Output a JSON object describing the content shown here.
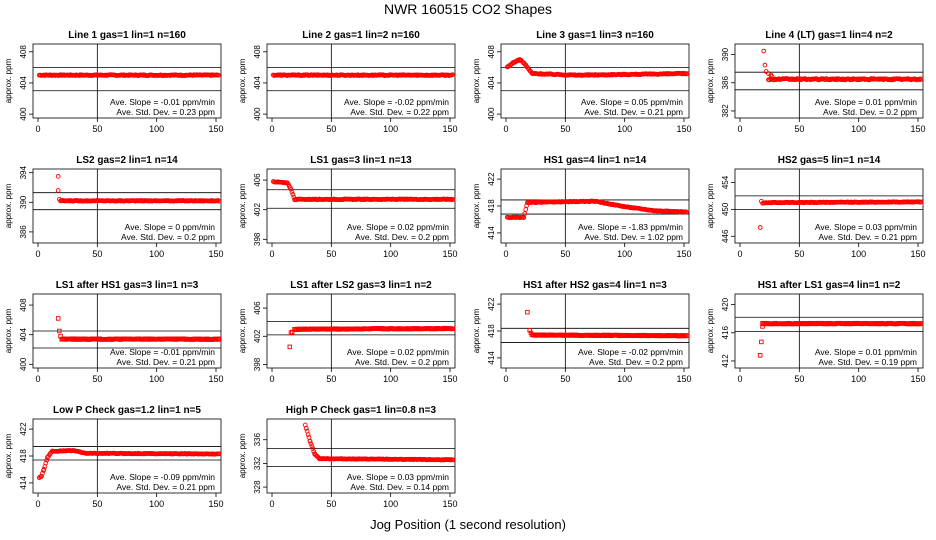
{
  "page": {
    "title": "NWR  160515  CO2 Shapes",
    "xlabel": "Jog Position (1 second resolution)"
  },
  "colors": {
    "points": "#ff0000",
    "axes": "#000000",
    "background": "#ffffff"
  },
  "chart_data": [
    {
      "type": "scatter",
      "title": "Line 1 gas=1 lin=1 n=160",
      "ylabel": "approx. ppm",
      "xlim": [
        0,
        150
      ],
      "xticks": [
        0,
        50,
        100,
        150
      ],
      "ylim": [
        399.5,
        409
      ],
      "yticks": [
        400,
        404,
        408
      ],
      "hlines": [
        403,
        406
      ],
      "vline": 50,
      "marker": "circle",
      "baseline": 405,
      "segments": [
        [
          1,
          153,
          405,
          405
        ]
      ],
      "noise": 0.06,
      "outliers": [],
      "slope_label": "Ave. Slope =  -0.01  ppm/min",
      "sd_label": "Ave. Std. Dev. =  0.23  ppm"
    },
    {
      "type": "scatter",
      "title": "Line 2 gas=1 lin=2 n=160",
      "ylabel": "approx. ppm",
      "xlim": [
        0,
        150
      ],
      "xticks": [
        0,
        50,
        100,
        150
      ],
      "ylim": [
        399.5,
        409
      ],
      "yticks": [
        400,
        404,
        408
      ],
      "hlines": [
        403,
        406
      ],
      "vline": 50,
      "marker": "circle",
      "baseline": 405,
      "segments": [
        [
          1,
          153,
          405,
          405
        ]
      ],
      "noise": 0.06,
      "outliers": [],
      "slope_label": "Ave. Slope =  -0.02  ppm/min",
      "sd_label": "Ave. Std. Dev. =  0.22  ppm"
    },
    {
      "type": "scatter",
      "title": "Line 3 gas=1 lin=3 n=160",
      "ylabel": "approx. ppm",
      "xlim": [
        0,
        150
      ],
      "xticks": [
        0,
        50,
        100,
        150
      ],
      "ylim": [
        399.5,
        409
      ],
      "yticks": [
        400,
        404,
        408
      ],
      "hlines": [
        403,
        406
      ],
      "vline": 50,
      "marker": "circle",
      "baseline": 405,
      "segments": [
        [
          1,
          6,
          406,
          406.6
        ],
        [
          6,
          12,
          406.6,
          407
        ],
        [
          12,
          16,
          407,
          406.4
        ],
        [
          16,
          22,
          406.4,
          405.2
        ],
        [
          22,
          60,
          405.2,
          405
        ],
        [
          60,
          153,
          405,
          405.2
        ]
      ],
      "noise": 0.06,
      "outliers": [],
      "slope_label": "Ave. Slope =  0.05  ppm/min",
      "sd_label": "Ave. Std. Dev. =  0.21  ppm"
    },
    {
      "type": "scatter",
      "title": "Line 4 (LT) gas=1 lin=4 n=2",
      "ylabel": "approx. ppm",
      "xlim": [
        0,
        150
      ],
      "xticks": [
        0,
        50,
        100,
        150
      ],
      "ylim": [
        381,
        391.5
      ],
      "yticks": [
        382,
        386,
        390
      ],
      "hlines": [
        385,
        387.5
      ],
      "vline": 50,
      "marker": "circle",
      "baseline": 386.5,
      "segments": [
        [
          24,
          153,
          386.5,
          386.5
        ]
      ],
      "noise": 0.1,
      "outliers": [
        [
          20,
          390.5
        ],
        [
          21,
          388.5
        ],
        [
          22,
          387.6
        ],
        [
          24,
          387.3
        ],
        [
          26,
          387.1
        ],
        [
          27,
          386.9
        ]
      ],
      "slope_label": "Ave. Slope =  0.01  ppm/min",
      "sd_label": "Ave. Std. Dev. =  0.2  ppm"
    },
    {
      "type": "scatter",
      "title": "LS2 gas=2 lin=1 n=14",
      "ylabel": "approx. ppm",
      "xlim": [
        0,
        150
      ],
      "xticks": [
        0,
        50,
        100,
        150
      ],
      "ylim": [
        384.5,
        394.5
      ],
      "yticks": [
        386,
        390,
        394
      ],
      "hlines": [
        389,
        391.3
      ],
      "vline": 50,
      "marker": "circle",
      "baseline": 390.2,
      "segments": [
        [
          19,
          153,
          390.2,
          390.2
        ]
      ],
      "noise": 0.05,
      "outliers": [
        [
          17,
          393.5
        ],
        [
          17,
          391.6
        ],
        [
          18,
          390.4
        ]
      ],
      "slope_label": "Ave. Slope =  0  ppm/min",
      "sd_label": "Ave. Std. Dev. =  0.2  ppm"
    },
    {
      "type": "scatter",
      "title": "LS1 gas=3 lin=1 n=13",
      "ylabel": "approx. ppm",
      "xlim": [
        0,
        150
      ],
      "xticks": [
        0,
        50,
        100,
        150
      ],
      "ylim": [
        397.5,
        407.5
      ],
      "yticks": [
        398,
        402,
        406
      ],
      "hlines": [
        402.2,
        404.7
      ],
      "vline": 50,
      "marker": "circle",
      "baseline": 403.4,
      "segments": [
        [
          1,
          13,
          405.8,
          405.6
        ],
        [
          13,
          16,
          405.6,
          404.8
        ],
        [
          16,
          19,
          404.8,
          403.4
        ],
        [
          19,
          153,
          403.4,
          403.4
        ]
      ],
      "noise": 0.05,
      "outliers": [],
      "slope_label": "Ave. Slope =  0.02  ppm/min",
      "sd_label": "Ave. Std. Dev. =  0.2  ppm"
    },
    {
      "type": "scatter",
      "title": "HS1 gas=4 lin=1 n=14",
      "ylabel": "approx. ppm",
      "xlim": [
        0,
        150
      ],
      "xticks": [
        0,
        50,
        100,
        150
      ],
      "ylim": [
        412.5,
        423.5
      ],
      "yticks": [
        414,
        418,
        422
      ],
      "hlines": [
        416.8,
        418.9
      ],
      "vline": 50,
      "marker": "circle",
      "baseline": 418,
      "segments": [
        [
          1,
          15,
          416.3,
          416.3
        ],
        [
          15,
          18,
          416.3,
          418.5
        ],
        [
          18,
          40,
          418.5,
          418.6
        ],
        [
          40,
          75,
          418.6,
          418.7
        ],
        [
          75,
          100,
          418.7,
          417.9
        ],
        [
          100,
          125,
          417.9,
          417.3
        ],
        [
          125,
          153,
          417.3,
          417.1
        ]
      ],
      "noise": 0.05,
      "outliers": [],
      "slope_label": "Ave. Slope =  -1.83  ppm/min",
      "sd_label": "Ave. Std. Dev. =  1.02  ppm"
    },
    {
      "type": "scatter",
      "title": "HS2 gas=5 lin=1 n=14",
      "ylabel": "approx. ppm",
      "xlim": [
        0,
        150
      ],
      "xticks": [
        0,
        50,
        100,
        150
      ],
      "ylim": [
        445,
        456
      ],
      "yticks": [
        446,
        450,
        454
      ],
      "hlines": [
        450,
        452
      ],
      "vline": 50,
      "marker": "circle",
      "baseline": 451,
      "segments": [
        [
          20,
          153,
          451,
          451.1
        ]
      ],
      "noise": 0.05,
      "outliers": [
        [
          17,
          447.3
        ],
        [
          18,
          451.2
        ],
        [
          19,
          450.9
        ]
      ],
      "slope_label": "Ave. Slope =  0.03  ppm/min",
      "sd_label": "Ave. Std. Dev. =  0.21  ppm"
    },
    {
      "type": "scatter",
      "title": "LS1 after HS1 gas=3 lin=1 n=3",
      "ylabel": "approx. ppm",
      "xlim": [
        0,
        150
      ],
      "xticks": [
        0,
        50,
        100,
        150
      ],
      "ylim": [
        399.5,
        409.5
      ],
      "yticks": [
        400,
        404,
        408
      ],
      "hlines": [
        402.2,
        404.5
      ],
      "vline": 50,
      "marker": "square",
      "baseline": 403.4,
      "segments": [
        [
          20,
          153,
          403.4,
          403.4
        ]
      ],
      "noise": 0.06,
      "outliers": [
        [
          17,
          406.2
        ],
        [
          18,
          404.5
        ],
        [
          19,
          403.8
        ]
      ],
      "slope_label": "Ave. Slope =  -0.01  ppm/min",
      "sd_label": "Ave. Std. Dev. =  0.21  ppm"
    },
    {
      "type": "scatter",
      "title": "LS1 after LS2 gas=3 lin=1 n=2",
      "ylabel": "approx. ppm",
      "xlim": [
        0,
        150
      ],
      "xticks": [
        0,
        50,
        100,
        150
      ],
      "ylim": [
        397.5,
        408
      ],
      "yticks": [
        398,
        402,
        406
      ],
      "hlines": [
        402.2,
        404.1
      ],
      "vline": 50,
      "marker": "square",
      "baseline": 403,
      "segments": [
        [
          19,
          153,
          403,
          403.1
        ]
      ],
      "noise": 0.06,
      "outliers": [
        [
          15,
          400.5
        ],
        [
          16,
          402.5
        ],
        [
          17,
          402.6
        ]
      ],
      "slope_label": "Ave. Slope =  0.02  ppm/min",
      "sd_label": "Ave. Std. Dev. =  0.2  ppm"
    },
    {
      "type": "scatter",
      "title": "HS1 after HS2 gas=4 lin=1 n=3",
      "ylabel": "approx. ppm",
      "xlim": [
        0,
        150
      ],
      "xticks": [
        0,
        50,
        100,
        150
      ],
      "ylim": [
        412.5,
        423.5
      ],
      "yticks": [
        414,
        418,
        422
      ],
      "hlines": [
        416.3,
        418.4
      ],
      "vline": 50,
      "marker": "square",
      "baseline": 417.4,
      "segments": [
        [
          22,
          153,
          417.4,
          417.3
        ]
      ],
      "noise": 0.06,
      "outliers": [
        [
          18,
          420.8
        ],
        [
          20,
          418.1
        ],
        [
          21,
          417.7
        ]
      ],
      "slope_label": "Ave. Slope =  -0.02  ppm/min",
      "sd_label": "Ave. Std. Dev. =  0.2  ppm"
    },
    {
      "type": "scatter",
      "title": "HS1 after LS1 gas=4 lin=1 n=2",
      "ylabel": "approx. ppm",
      "xlim": [
        0,
        150
      ],
      "xticks": [
        0,
        50,
        100,
        150
      ],
      "ylim": [
        411,
        421.5
      ],
      "yticks": [
        412,
        416,
        420
      ],
      "hlines": [
        416.2,
        418.2
      ],
      "vline": 50,
      "marker": "square",
      "baseline": 417.3,
      "segments": [
        [
          19,
          153,
          417.3,
          417.3
        ]
      ],
      "noise": 0.06,
      "outliers": [
        [
          17,
          412.8
        ],
        [
          18,
          414.7
        ],
        [
          19,
          416.9
        ]
      ],
      "slope_label": "Ave. Slope =  0.01  ppm/min",
      "sd_label": "Ave. Std. Dev. =  0.19  ppm"
    },
    {
      "type": "scatter",
      "title": "Low P Check gas=1.2 lin=1 n=5",
      "ylabel": "approx. ppm",
      "xlim": [
        0,
        150
      ],
      "xticks": [
        0,
        50,
        100,
        150
      ],
      "ylim": [
        412.5,
        423.5
      ],
      "yticks": [
        414,
        418,
        422
      ],
      "hlines": [
        417.4,
        419.4
      ],
      "vline": 50,
      "marker": "circle",
      "baseline": 418.4,
      "segments": [
        [
          1,
          3,
          414.8,
          415
        ],
        [
          3,
          5,
          415,
          416
        ],
        [
          5,
          8,
          416,
          417.8
        ],
        [
          8,
          12,
          417.8,
          418.7
        ],
        [
          12,
          30,
          418.7,
          418.8
        ],
        [
          30,
          40,
          418.8,
          418.4
        ],
        [
          40,
          153,
          418.4,
          418.3
        ]
      ],
      "noise": 0.05,
      "outliers": [],
      "slope_label": "Ave. Slope =  -0.09  ppm/min",
      "sd_label": "Ave. Std. Dev. =  0.21  ppm"
    },
    {
      "type": "scatter",
      "title": "High P Check gas=1 lin=0.8 n=3",
      "ylabel": "approx. ppm",
      "xlim": [
        0,
        150
      ],
      "xticks": [
        0,
        50,
        100,
        150
      ],
      "ylim": [
        327,
        339.5
      ],
      "yticks": [
        328,
        332,
        336
      ],
      "hlines": [
        331.5,
        334.5
      ],
      "vline": 50,
      "marker": "circle",
      "baseline": 332.6,
      "segments": [
        [
          28,
          32,
          338.5,
          335.8
        ],
        [
          32,
          36,
          335.8,
          333.6
        ],
        [
          36,
          40,
          333.6,
          332.8
        ],
        [
          40,
          153,
          332.8,
          332.6
        ]
      ],
      "noise": 0.05,
      "outliers": [],
      "slope_label": "Ave. Slope =  0.03  ppm/min",
      "sd_label": "Ave. Std. Dev. =  0.14  ppm"
    }
  ]
}
